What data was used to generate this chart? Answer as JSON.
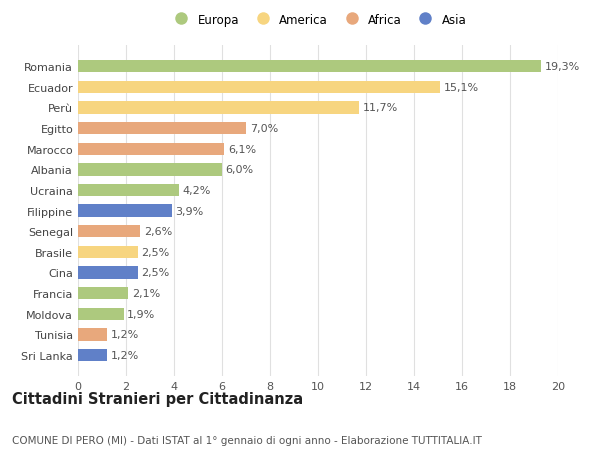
{
  "categories": [
    "Romania",
    "Ecuador",
    "Perù",
    "Egitto",
    "Marocco",
    "Albania",
    "Ucraina",
    "Filippine",
    "Senegal",
    "Brasile",
    "Cina",
    "Francia",
    "Moldova",
    "Tunisia",
    "Sri Lanka"
  ],
  "values": [
    19.3,
    15.1,
    11.7,
    7.0,
    6.1,
    6.0,
    4.2,
    3.9,
    2.6,
    2.5,
    2.5,
    2.1,
    1.9,
    1.2,
    1.2
  ],
  "labels": [
    "19,3%",
    "15,1%",
    "11,7%",
    "7,0%",
    "6,1%",
    "6,0%",
    "4,2%",
    "3,9%",
    "2,6%",
    "2,5%",
    "2,5%",
    "2,1%",
    "1,9%",
    "1,2%",
    "1,2%"
  ],
  "colors": [
    "#adc97e",
    "#f7d580",
    "#f7d580",
    "#e8a87c",
    "#e8a87c",
    "#adc97e",
    "#adc97e",
    "#6080c8",
    "#e8a87c",
    "#f7d580",
    "#6080c8",
    "#adc97e",
    "#adc97e",
    "#e8a87c",
    "#6080c8"
  ],
  "continent": [
    "Europa",
    "America",
    "America",
    "Africa",
    "Africa",
    "Europa",
    "Europa",
    "Asia",
    "Africa",
    "America",
    "Asia",
    "Europa",
    "Europa",
    "Africa",
    "Asia"
  ],
  "legend_labels": [
    "Europa",
    "America",
    "Africa",
    "Asia"
  ],
  "legend_colors": [
    "#adc97e",
    "#f7d580",
    "#e8a87c",
    "#6080c8"
  ],
  "title": "Cittadini Stranieri per Cittadinanza",
  "subtitle": "COMUNE DI PERO (MI) - Dati ISTAT al 1° gennaio di ogni anno - Elaborazione TUTTITALIA.IT",
  "xlim": [
    0,
    20
  ],
  "xticks": [
    0,
    2,
    4,
    6,
    8,
    10,
    12,
    14,
    16,
    18,
    20
  ],
  "background_color": "#ffffff",
  "bar_height": 0.6,
  "grid_color": "#e0e0e0",
  "label_fontsize": 8,
  "tick_fontsize": 8,
  "title_fontsize": 10.5,
  "subtitle_fontsize": 7.5
}
